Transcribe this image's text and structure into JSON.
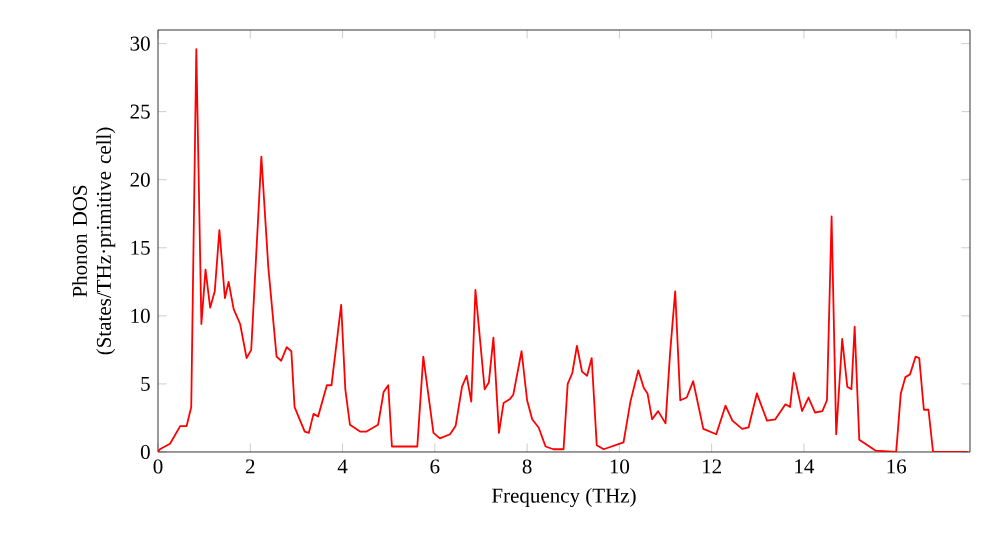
{
  "chart_data": {
    "type": "line",
    "xlabel": "Frequency (THz)",
    "ylabel": "Phonon DOS (States/THz·primitive cell)",
    "xlim": [
      0,
      17.6
    ],
    "ylim": [
      0,
      31
    ],
    "xticks": [
      0,
      2,
      4,
      6,
      8,
      10,
      12,
      14,
      16
    ],
    "yticks": [
      0,
      5,
      10,
      15,
      20,
      25,
      30
    ],
    "grid": false,
    "marker": "none",
    "line_style": "solid",
    "series": [
      {
        "color": "#ff0000",
        "x": [
          0,
          0.04,
          0.26,
          0.48,
          0.62,
          0.72,
          0.83,
          0.94,
          1.03,
          1.13,
          1.23,
          1.33,
          1.45,
          1.53,
          1.64,
          1.78,
          1.92,
          2.02,
          2.24,
          2.39,
          2.57,
          2.67,
          2.79,
          2.89,
          2.96,
          3.18,
          3.27,
          3.37,
          3.47,
          3.66,
          3.76,
          3.97,
          4.06,
          4.16,
          4.38,
          4.52,
          4.77,
          4.89,
          4.99,
          5.07,
          5.62,
          5.75,
          5.97,
          6.11,
          6.33,
          6.45,
          6.59,
          6.69,
          6.79,
          6.88,
          7.08,
          7.17,
          7.27,
          7.39,
          7.49,
          7.63,
          7.7,
          7.88,
          8.0,
          8.11,
          8.25,
          8.4,
          8.57,
          8.79,
          8.88,
          8.98,
          9.08,
          9.19,
          9.3,
          9.4,
          9.51,
          9.66,
          10.09,
          10.24,
          10.41,
          10.53,
          10.61,
          10.71,
          10.84,
          11.0,
          11.1,
          11.21,
          11.32,
          11.46,
          11.6,
          11.82,
          12.1,
          12.3,
          12.45,
          12.66,
          12.8,
          12.98,
          13.2,
          13.38,
          13.6,
          13.7,
          13.78,
          13.96,
          14.1,
          14.24,
          14.4,
          14.5,
          14.6,
          14.7,
          14.83,
          14.94,
          15.03,
          15.1,
          15.2,
          15.55,
          16.0,
          16.1,
          16.2,
          16.3,
          16.42,
          16.5,
          16.6,
          16.7,
          16.8,
          17.55
        ],
        "values": [
          0,
          0.2,
          0.6,
          1.9,
          1.9,
          3.3,
          29.6,
          9.4,
          13.4,
          10.6,
          11.8,
          16.3,
          11.3,
          12.5,
          10.5,
          9.4,
          6.9,
          7.5,
          21.7,
          13.6,
          7.0,
          6.7,
          7.7,
          7.4,
          3.3,
          1.5,
          1.4,
          2.8,
          2.6,
          4.9,
          4.9,
          10.8,
          4.6,
          2.0,
          1.5,
          1.5,
          2.0,
          4.4,
          4.9,
          0.4,
          0.4,
          7.0,
          1.4,
          1.0,
          1.3,
          1.9,
          4.8,
          5.6,
          3.7,
          11.9,
          4.6,
          5.1,
          8.4,
          1.4,
          3.6,
          3.9,
          4.2,
          7.4,
          3.8,
          2.4,
          1.8,
          0.4,
          0.2,
          0.2,
          5.0,
          5.8,
          7.8,
          5.9,
          5.6,
          6.9,
          0.5,
          0.2,
          0.7,
          3.7,
          6.0,
          4.7,
          4.3,
          2.4,
          3.0,
          2.1,
          7.3,
          11.8,
          3.8,
          4.0,
          5.2,
          1.7,
          1.3,
          3.4,
          2.3,
          1.7,
          1.8,
          4.3,
          2.3,
          2.4,
          3.5,
          3.3,
          5.8,
          3.0,
          4.0,
          2.9,
          3.0,
          3.8,
          17.3,
          1.3,
          8.3,
          4.8,
          4.6,
          9.2,
          0.9,
          0.1,
          0,
          4.3,
          5.5,
          5.7,
          7.0,
          6.9,
          3.1,
          3.1,
          0,
          0
        ]
      }
    ]
  }
}
